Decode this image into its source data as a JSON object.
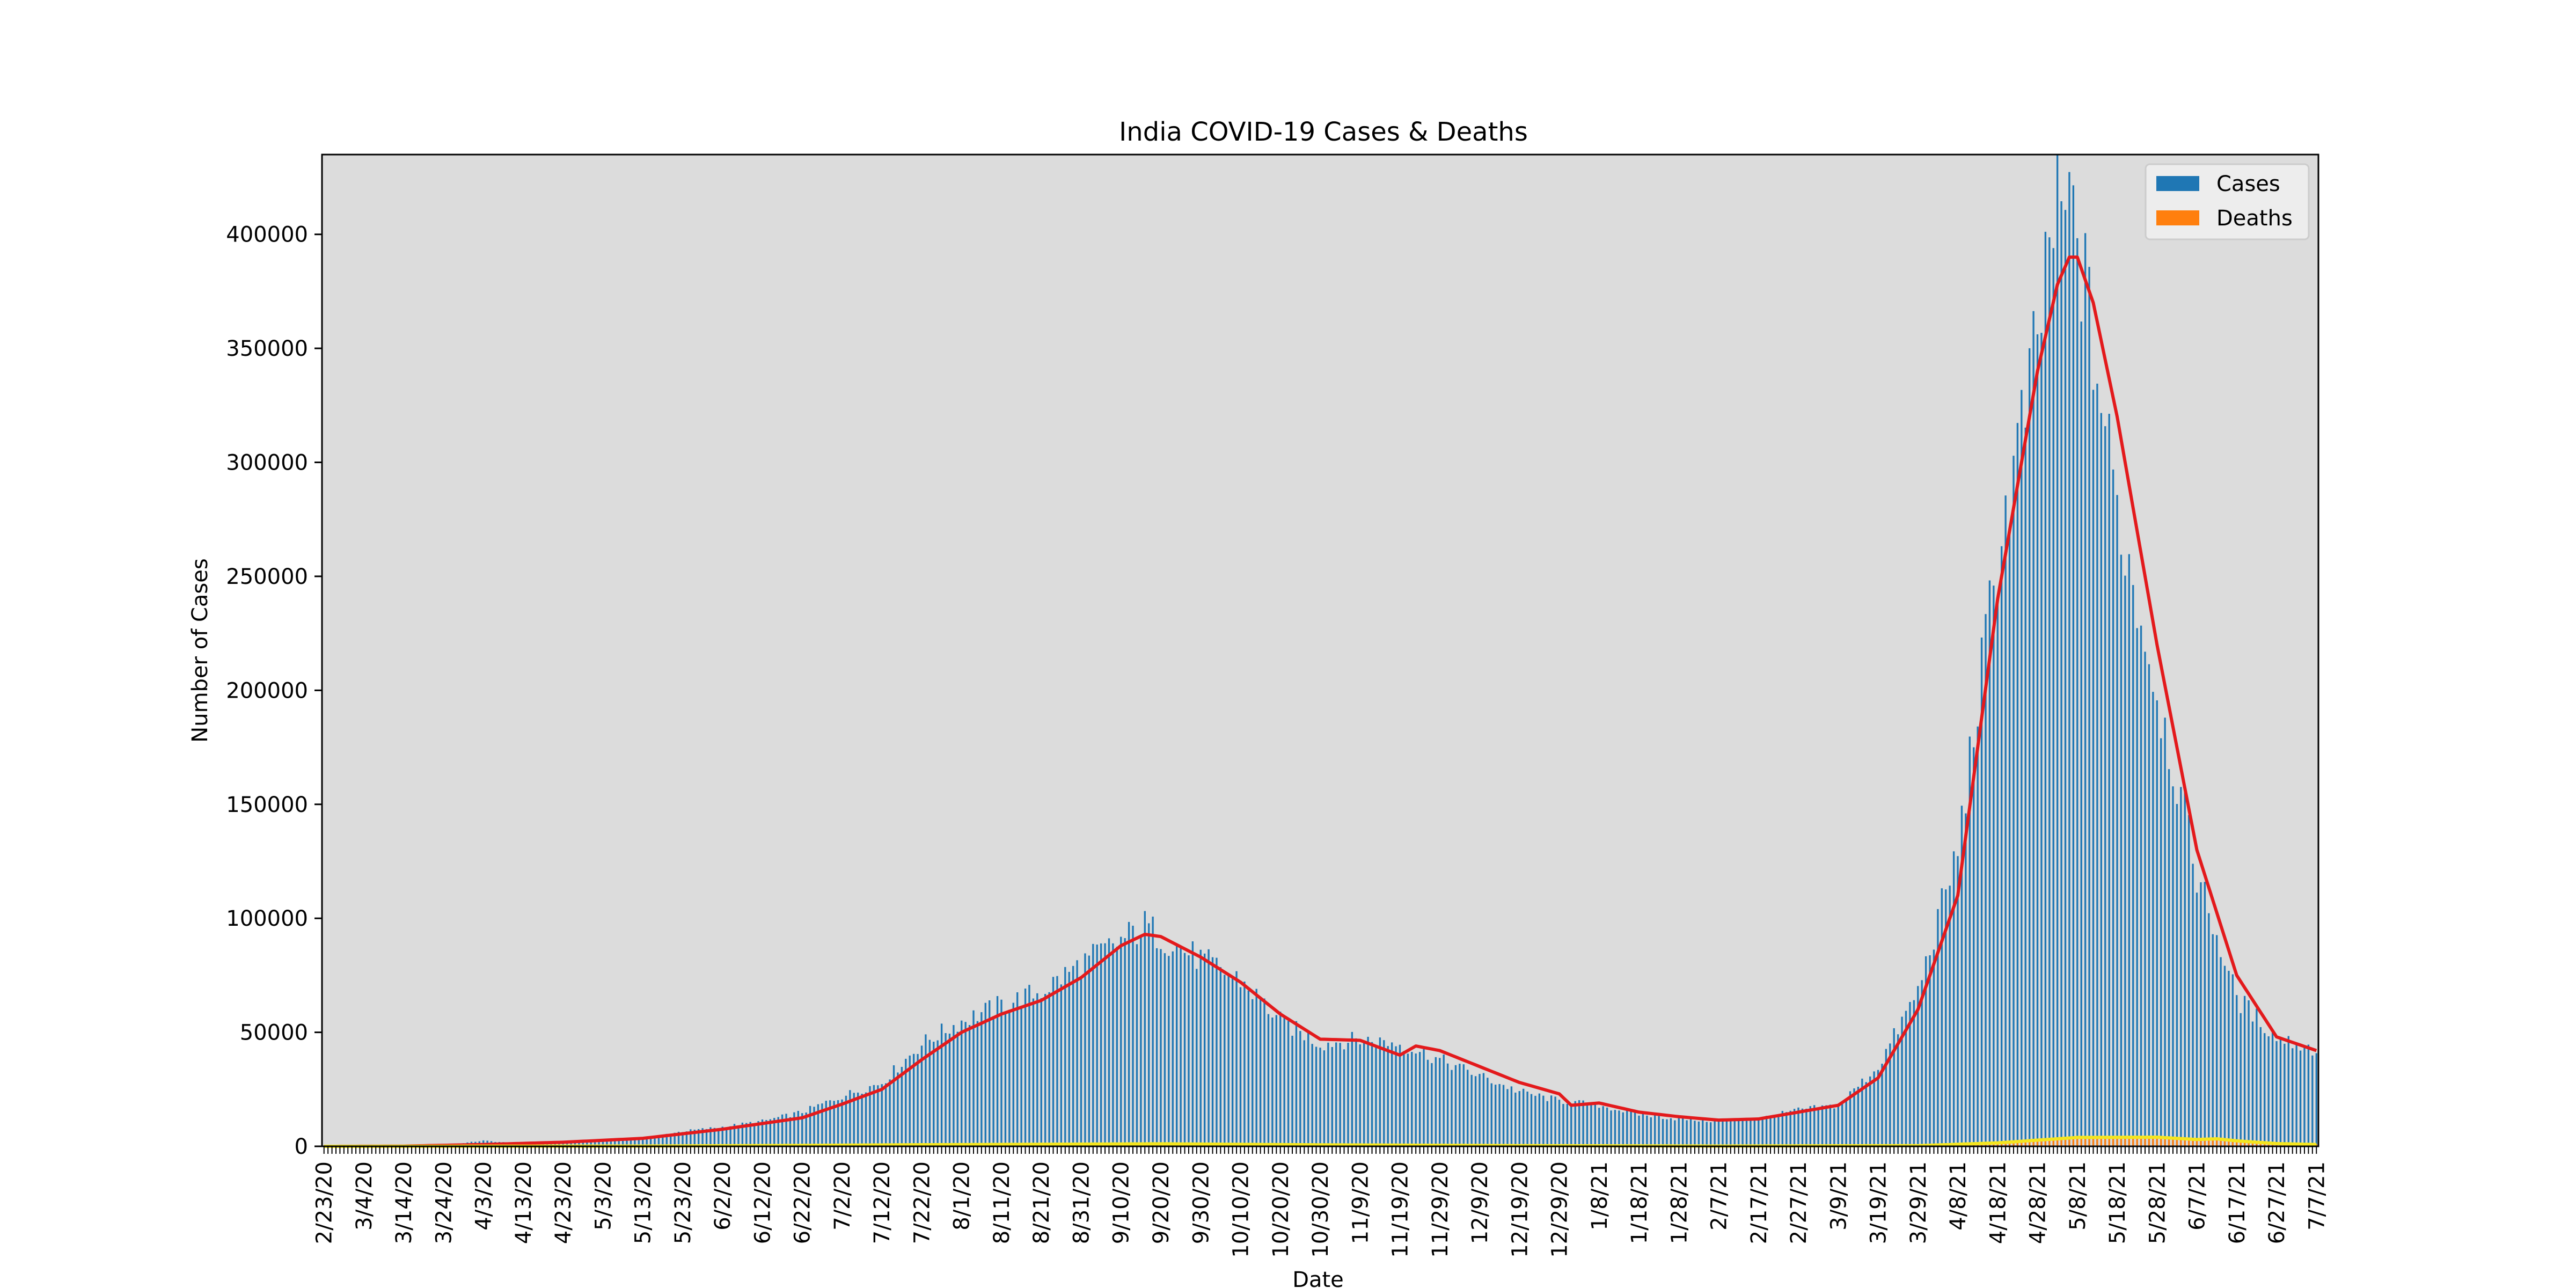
{
  "chart_data": {
    "type": "bar",
    "title": "India COVID-19 Cases & Deaths",
    "xlabel": "Date",
    "ylabel": "Number of Cases",
    "ylim": [
      0,
      435000
    ],
    "y_ticks": [
      0,
      50000,
      100000,
      150000,
      200000,
      250000,
      300000,
      350000,
      400000
    ],
    "x_tick_labels": [
      "2/23/20",
      "3/4/20",
      "3/14/20",
      "3/24/20",
      "4/3/20",
      "4/13/20",
      "4/23/20",
      "5/3/20",
      "5/13/20",
      "5/23/20",
      "6/2/20",
      "6/12/20",
      "6/22/20",
      "7/2/20",
      "7/12/20",
      "7/22/20",
      "8/1/20",
      "8/11/20",
      "8/21/20",
      "8/31/20",
      "9/10/20",
      "9/20/20",
      "9/30/20",
      "10/10/20",
      "10/20/20",
      "10/30/20",
      "11/9/20",
      "11/19/20",
      "11/29/20",
      "12/9/20",
      "12/19/20",
      "12/29/20",
      "1/8/21",
      "1/18/21",
      "1/28/21",
      "2/7/21",
      "2/17/21",
      "2/27/21",
      "3/9/21",
      "3/19/21",
      "3/29/21",
      "4/8/21",
      "4/18/21",
      "4/28/21",
      "5/8/21",
      "5/18/21",
      "5/28/21",
      "6/7/21",
      "6/17/21",
      "6/27/21",
      "7/7/21"
    ],
    "x_start": "2/23/20",
    "x_end": "7/8/21",
    "series": [
      {
        "name": "Cases",
        "type": "bar",
        "color": "#1f77b4",
        "anchor_dates": [
          "2/23/20",
          "3/14/20",
          "3/24/20",
          "4/3/20",
          "4/13/20",
          "4/23/20",
          "5/3/20",
          "5/13/20",
          "5/23/20",
          "6/2/20",
          "6/12/20",
          "6/22/20",
          "7/2/20",
          "7/12/20",
          "7/22/20",
          "8/1/20",
          "8/11/20",
          "8/21/20",
          "8/31/20",
          "9/10/20",
          "9/16/20",
          "9/20/20",
          "9/30/20",
          "10/10/20",
          "10/20/20",
          "10/30/20",
          "11/9/20",
          "11/19/20",
          "11/29/20",
          "12/9/20",
          "12/19/20",
          "12/29/20",
          "1/8/21",
          "1/18/21",
          "1/28/21",
          "2/7/21",
          "2/17/21",
          "2/27/21",
          "3/9/21",
          "3/19/21",
          "3/29/21",
          "4/8/21",
          "4/18/21",
          "4/28/21",
          "5/1/21",
          "5/6/21",
          "5/8/21",
          "5/12/21",
          "5/18/21",
          "5/28/21",
          "6/7/21",
          "6/17/21",
          "6/27/21",
          "7/7/21"
        ],
        "anchor_values": [
          0,
          50,
          400,
          2500,
          1000,
          1500,
          3000,
          3500,
          6600,
          8500,
          11000,
          15000,
          22000,
          28000,
          45000,
          55000,
          62000,
          68000,
          80000,
          90000,
          97000,
          92000,
          82000,
          73000,
          55000,
          45000,
          47000,
          45000,
          38000,
          31000,
          24000,
          20000,
          18000,
          14000,
          12000,
          11000,
          12000,
          16000,
          18000,
          35000,
          68000,
          130000,
          260000,
          350000,
          400000,
          410000,
          400000,
          350000,
          280000,
          200000,
          120000,
          65000,
          48000,
          42000
        ]
      },
      {
        "name": "Deaths",
        "type": "bar",
        "color": "#ff7f0e",
        "anchor_dates": [
          "2/23/20",
          "4/3/20",
          "5/13/20",
          "6/22/20",
          "7/22/20",
          "9/20/20",
          "10/30/20",
          "12/19/20",
          "2/7/21",
          "3/29/21",
          "4/18/21",
          "5/8/21",
          "5/28/21",
          "6/17/21",
          "7/7/21"
        ],
        "anchor_values": [
          0,
          50,
          120,
          400,
          700,
          1150,
          600,
          300,
          120,
          300,
          1500,
          3900,
          4000,
          2200,
          900
        ]
      },
      {
        "name": "",
        "type": "line",
        "color": "#e31a1c",
        "anchor_dates": [
          "2/23/20",
          "3/14/20",
          "4/3/20",
          "4/23/20",
          "5/13/20",
          "6/2/20",
          "6/12/20",
          "6/22/20",
          "7/2/20",
          "7/12/20",
          "7/22/20",
          "8/1/20",
          "8/11/20",
          "8/21/20",
          "8/31/20",
          "9/10/20",
          "9/16/20",
          "9/20/20",
          "9/30/20",
          "10/10/20",
          "10/20/20",
          "10/30/20",
          "11/9/20",
          "11/19/20",
          "11/23/20",
          "11/29/20",
          "12/9/20",
          "12/19/20",
          "12/29/20",
          "1/1/21",
          "1/8/21",
          "1/18/21",
          "1/28/21",
          "2/7/21",
          "2/17/21",
          "2/27/21",
          "3/9/21",
          "3/19/21",
          "3/29/21",
          "4/8/21",
          "4/18/21",
          "4/28/21",
          "5/3/21",
          "5/6/21",
          "5/8/21",
          "5/12/21",
          "5/18/21",
          "5/28/21",
          "6/7/21",
          "6/17/21",
          "6/27/21",
          "7/7/21"
        ],
        "anchor_values": [
          0,
          100,
          800,
          1800,
          3500,
          7500,
          10000,
          12500,
          18500,
          25000,
          38000,
          50000,
          58000,
          64000,
          74000,
          88000,
          93000,
          92000,
          83000,
          72000,
          58000,
          47000,
          46500,
          40000,
          44000,
          42000,
          35000,
          28000,
          23000,
          18000,
          19000,
          15000,
          13000,
          11500,
          12000,
          15000,
          18000,
          30000,
          60000,
          110000,
          240000,
          340000,
          378000,
          390000,
          390000,
          370000,
          320000,
          220000,
          130000,
          75000,
          48000,
          42000
        ]
      },
      {
        "name": "",
        "type": "line",
        "color": "#f5e61e",
        "anchor_dates": [
          "2/23/20",
          "4/3/20",
          "5/13/20",
          "6/22/20",
          "7/22/20",
          "9/20/20",
          "10/30/20",
          "12/19/20",
          "2/7/21",
          "3/29/21",
          "4/18/21",
          "5/8/21",
          "5/28/21",
          "6/7/21",
          "6/12/21",
          "6/17/21",
          "6/27/21",
          "7/7/21"
        ],
        "anchor_values": [
          0,
          50,
          120,
          400,
          700,
          1100,
          650,
          300,
          120,
          300,
          1500,
          3900,
          4000,
          3000,
          3300,
          2400,
          1200,
          800
        ]
      }
    ],
    "grid": false,
    "legend_position": "top-right",
    "legend": [
      {
        "label": "Cases",
        "color": "#1f77b4"
      },
      {
        "label": "Deaths",
        "color": "#ff7f0e"
      }
    ],
    "background_color": "#dcdcdc"
  }
}
